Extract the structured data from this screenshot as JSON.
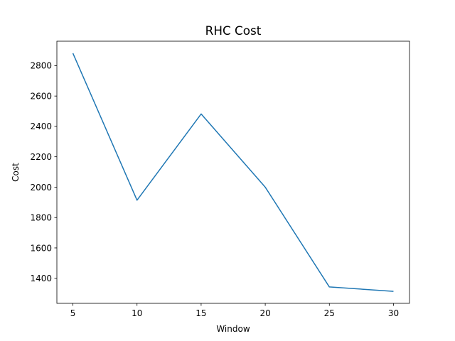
{
  "chart_data": {
    "type": "line",
    "title": "RHC Cost",
    "xlabel": "Window",
    "ylabel": "Cost",
    "x": [
      5,
      10,
      15,
      20,
      25,
      30
    ],
    "series": [
      {
        "values": [
          2882,
          1914,
          2482,
          2000,
          1343,
          1314
        ],
        "color": "#1f77b4"
      }
    ],
    "xlim": [
      3.75,
      31.25
    ],
    "ylim": [
      1235,
      2961
    ],
    "xticks": [
      5,
      10,
      15,
      20,
      25,
      30
    ],
    "yticks": [
      1400,
      1600,
      1800,
      2000,
      2200,
      2400,
      2600,
      2800
    ],
    "grid": false,
    "legend": "none"
  }
}
